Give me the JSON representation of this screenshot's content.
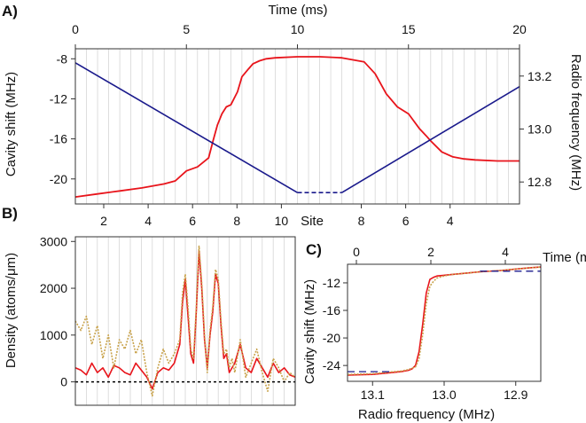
{
  "chart_data": [
    {
      "panel": "A)",
      "type": "line",
      "xlabel": "Time (ms)",
      "ylabel_left": "Cavity shift (MHz)",
      "ylabel_right": "Radio frequency (MHz)",
      "xlabel_bottom": "Site",
      "x_ticks": [
        "0",
        "5",
        "10",
        "15",
        "20"
      ],
      "y_left_ticks": [
        "-8",
        "-12",
        "-16",
        "-20"
      ],
      "y_right_ticks": [
        "13.2",
        "13.0",
        "12.8"
      ],
      "site_ticks": [
        "2",
        "4",
        "6",
        "8",
        "10",
        "8",
        "6",
        "4"
      ],
      "xlim": [
        0,
        20
      ],
      "ylim_left": [
        -22.5,
        -7.0
      ],
      "ylim_right": [
        12.717,
        13.303
      ],
      "grid": true,
      "series": [
        {
          "axis": "left",
          "color": "#e8141b",
          "x": [
            0,
            1,
            2,
            3,
            4,
            4.5,
            5,
            5.5,
            6,
            6.2,
            6.4,
            6.6,
            6.8,
            7.0,
            7.3,
            7.5,
            7.8,
            8.0,
            8.3,
            8.6,
            9,
            10,
            11,
            12,
            13,
            13.5,
            14,
            14.5,
            15,
            15.5,
            15.8,
            16,
            16.5,
            17,
            17.5,
            18,
            19,
            20
          ],
          "y": [
            -21.8,
            -21.5,
            -21.2,
            -20.9,
            -20.5,
            -20.2,
            -19.2,
            -18.8,
            -17.9,
            -16.2,
            -14.6,
            -13.5,
            -12.8,
            -12.6,
            -11.3,
            -9.8,
            -9.0,
            -8.5,
            -8.2,
            -8.0,
            -7.9,
            -7.8,
            -7.8,
            -7.9,
            -8.3,
            -9.5,
            -11.5,
            -12.8,
            -13.5,
            -15.0,
            -15.7,
            -16.2,
            -17.3,
            -17.8,
            -18.0,
            -18.1,
            -18.2,
            -18.2
          ]
        },
        {
          "axis": "right",
          "color": "#1a1a8c",
          "x": [
            0,
            10,
            12,
            20
          ],
          "y": [
            13.25,
            12.76,
            12.76,
            13.16
          ],
          "dashed_segment": [
            10,
            12
          ]
        }
      ]
    },
    {
      "panel": "B)",
      "type": "line",
      "ylabel": "Density (atoms/μm)",
      "y_ticks": [
        "3000",
        "2000",
        "1000",
        "0"
      ],
      "ylim": [
        -500,
        3100
      ],
      "xlim": [
        0,
        40
      ],
      "grid": true,
      "series": [
        {
          "color": "#e8141b",
          "x": [
            0,
            1,
            2,
            3,
            4,
            5,
            6,
            7,
            8,
            9,
            10,
            11,
            12,
            13,
            14,
            15,
            16,
            17,
            18,
            19,
            19.5,
            20,
            20.5,
            21,
            21.5,
            22,
            22.5,
            23,
            23.5,
            24,
            24.5,
            25,
            25.5,
            26,
            26.5,
            27,
            27.5,
            28,
            28.5,
            29,
            30,
            31,
            32,
            33,
            34,
            35,
            36,
            37,
            38,
            39,
            40
          ],
          "y": [
            300,
            250,
            150,
            400,
            200,
            300,
            100,
            350,
            300,
            200,
            150,
            400,
            250,
            100,
            -150,
            200,
            300,
            250,
            400,
            800,
            1700,
            2200,
            1400,
            600,
            400,
            1500,
            2800,
            2000,
            900,
            300,
            1000,
            1500,
            2300,
            2100,
            1200,
            500,
            600,
            200,
            300,
            400,
            800,
            300,
            200,
            500,
            300,
            100,
            400,
            200,
            300,
            150,
            100
          ]
        },
        {
          "color": "#c8a24a",
          "dotted": true,
          "x": [
            0,
            1,
            2,
            3,
            4,
            5,
            6,
            7,
            8,
            9,
            10,
            11,
            12,
            13,
            14,
            15,
            16,
            17,
            18,
            19,
            19.5,
            20,
            20.5,
            21,
            21.5,
            22,
            22.5,
            23,
            23.5,
            24,
            24.5,
            25,
            25.5,
            26,
            26.5,
            27,
            27.5,
            28,
            28.5,
            29,
            30,
            31,
            32,
            33,
            34,
            35,
            36,
            37,
            38,
            39,
            40
          ],
          "y": [
            1300,
            1100,
            1400,
            800,
            1200,
            500,
            1000,
            300,
            900,
            700,
            1100,
            600,
            900,
            200,
            -300,
            300,
            700,
            400,
            600,
            900,
            1900,
            2300,
            1600,
            700,
            500,
            1600,
            2900,
            2100,
            1000,
            200,
            1100,
            1600,
            2400,
            2200,
            1300,
            600,
            700,
            300,
            500,
            200,
            900,
            100,
            400,
            700,
            200,
            -200,
            500,
            300,
            0,
            200,
            100
          ]
        },
        {
          "color": "#000000",
          "dashed": true,
          "x": [
            0,
            40
          ],
          "y": [
            0,
            0
          ]
        }
      ]
    },
    {
      "panel": "C)",
      "type": "line",
      "xlabel": "Radio frequency (MHz)",
      "ylabel": "Cavity shift (MHz)",
      "x2label": "Time (ms)",
      "x_ticks": [
        "13.1",
        "13.0",
        "12.9"
      ],
      "x2_ticks": [
        "0",
        "2",
        "4"
      ],
      "y_ticks": [
        "-12",
        "-16",
        "-20",
        "-24"
      ],
      "xlim": [
        13.135,
        12.865
      ],
      "ylim": [
        -26.3,
        -9.3
      ],
      "series": [
        {
          "color": "#e8141b",
          "x": [
            13.135,
            13.1,
            13.08,
            13.06,
            13.05,
            13.045,
            13.04,
            13.035,
            13.03,
            13.025,
            13.02,
            13.015,
            13.01,
            13.0,
            12.99,
            12.97,
            12.95,
            12.92,
            12.9,
            12.88,
            12.865
          ],
          "y": [
            -25.4,
            -25.3,
            -25.1,
            -24.9,
            -24.7,
            -24.5,
            -24.0,
            -22.0,
            -18.0,
            -13.5,
            -11.5,
            -11.2,
            -11.0,
            -10.9,
            -10.8,
            -10.6,
            -10.4,
            -10.2,
            -10.0,
            -9.8,
            -9.7
          ]
        },
        {
          "color": "#c8a24a",
          "dotted": true,
          "x": [
            13.135,
            13.1,
            13.08,
            13.06,
            13.05,
            13.045,
            13.04,
            13.035,
            13.03,
            13.025,
            13.02,
            13.015,
            13.01,
            13.0,
            12.99,
            12.97,
            12.95,
            12.92,
            12.9,
            12.88,
            12.865
          ],
          "y": [
            -25.3,
            -25.2,
            -25.0,
            -24.8,
            -24.6,
            -24.4,
            -24.2,
            -23.0,
            -19.5,
            -15.0,
            -12.5,
            -11.8,
            -11.3,
            -11.0,
            -10.8,
            -10.6,
            -10.4,
            -10.2,
            -10.0,
            -9.8,
            -9.7
          ]
        },
        {
          "color": "#1a1a8c",
          "dashed": true,
          "x": [
            13.135,
            13.075
          ],
          "y": [
            -24.9,
            -24.9
          ]
        },
        {
          "color": "#1a1a8c",
          "dashed": true,
          "x": [
            12.95,
            12.865
          ],
          "y": [
            -10.3,
            -10.3
          ]
        }
      ]
    }
  ]
}
